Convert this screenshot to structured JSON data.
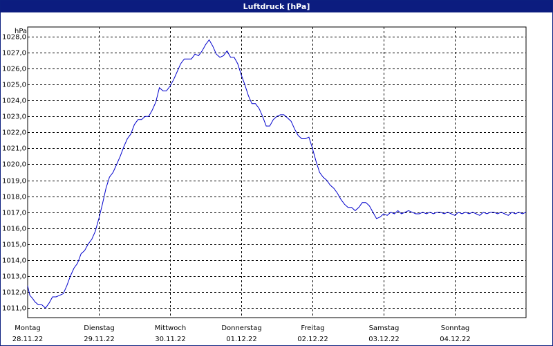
{
  "title": "Luftdruck [hPa]",
  "chart_data": {
    "type": "line",
    "title": "Luftdruck [hPa]",
    "ylabel": "hPa",
    "xlabel": "",
    "ylim": [
      1010.4,
      1028.6
    ],
    "xlim": [
      0,
      7
    ],
    "grid": true,
    "line_color": "#0000cc",
    "y_ticks": [
      "1011,0",
      "1012,0",
      "1013,0",
      "1014,0",
      "1015,0",
      "1016,0",
      "1017,0",
      "1018,0",
      "1019,0",
      "1020,0",
      "1021,0",
      "1022,0",
      "1023,0",
      "1024,0",
      "1025,0",
      "1026,0",
      "1027,0",
      "1028,0"
    ],
    "y_tick_values": [
      1011,
      1012,
      1013,
      1014,
      1015,
      1016,
      1017,
      1018,
      1019,
      1020,
      1021,
      1022,
      1023,
      1024,
      1025,
      1026,
      1027,
      1028
    ],
    "days": [
      {
        "name": "Montag",
        "date": "28.11.22"
      },
      {
        "name": "Dienstag",
        "date": "29.11.22"
      },
      {
        "name": "Mittwoch",
        "date": "30.11.22"
      },
      {
        "name": "Donnerstag",
        "date": "01.12.22"
      },
      {
        "name": "Freitag",
        "date": "02.12.22"
      },
      {
        "name": "Samstag",
        "date": "03.12.22"
      },
      {
        "name": "Sonntag",
        "date": "04.12.22"
      }
    ],
    "series": [
      {
        "x": [
          0,
          0.03,
          0.07,
          0.1,
          0.15,
          0.2,
          0.25,
          0.3,
          0.35,
          0.4,
          0.45,
          0.5,
          0.55,
          0.6,
          0.65,
          0.7,
          0.75,
          0.8,
          0.85,
          0.9,
          0.95,
          1.0,
          1.05,
          1.1,
          1.15,
          1.2,
          1.25,
          1.3,
          1.35,
          1.4,
          1.45,
          1.5,
          1.55,
          1.6,
          1.65,
          1.7,
          1.75,
          1.8,
          1.85,
          1.9,
          1.95,
          2.0,
          2.05,
          2.1,
          2.15,
          2.2,
          2.25,
          2.3,
          2.35,
          2.4,
          2.45,
          2.5,
          2.55,
          2.6,
          2.65,
          2.7,
          2.75,
          2.8,
          2.85,
          2.9,
          2.95,
          3.0,
          3.05,
          3.1,
          3.15,
          3.2,
          3.25,
          3.3,
          3.35,
          3.4,
          3.45,
          3.5,
          3.55,
          3.6,
          3.65,
          3.7,
          3.75,
          3.8,
          3.85,
          3.9,
          3.95,
          4.0,
          4.05,
          4.1,
          4.15,
          4.2,
          4.25,
          4.3,
          4.35,
          4.4,
          4.45,
          4.5,
          4.55,
          4.6,
          4.65,
          4.7,
          4.75,
          4.8,
          4.85,
          4.9,
          4.95,
          5.0,
          5.05,
          5.1,
          5.15,
          5.2,
          5.25,
          5.3,
          5.35,
          5.4,
          5.45,
          5.5,
          5.55,
          5.6,
          5.65,
          5.7,
          5.75,
          5.8,
          5.85,
          5.9,
          5.95,
          6.0,
          6.05,
          6.1,
          6.15,
          6.2,
          6.25,
          6.3,
          6.35,
          6.4,
          6.45,
          6.5,
          6.55,
          6.6,
          6.65,
          6.7,
          6.75,
          6.8,
          6.85,
          6.9,
          6.95,
          7.0
        ],
        "values": [
          1012.4,
          1011.8,
          1011.6,
          1011.4,
          1011.2,
          1011.2,
          1011.0,
          1011.3,
          1011.7,
          1011.7,
          1011.8,
          1011.9,
          1012.4,
          1013.0,
          1013.5,
          1013.8,
          1014.4,
          1014.6,
          1015.0,
          1015.3,
          1015.8,
          1016.6,
          1017.5,
          1018.5,
          1019.2,
          1019.5,
          1020.0,
          1020.5,
          1021.1,
          1021.6,
          1021.9,
          1022.5,
          1022.8,
          1022.8,
          1023.0,
          1023.0,
          1023.4,
          1023.9,
          1024.8,
          1024.6,
          1024.6,
          1024.9,
          1025.3,
          1025.8,
          1026.3,
          1026.6,
          1026.6,
          1026.6,
          1026.9,
          1026.8,
          1027.1,
          1027.5,
          1027.8,
          1027.4,
          1026.9,
          1026.7,
          1026.8,
          1027.1,
          1026.7,
          1026.7,
          1026.3,
          1025.6,
          1025.0,
          1024.3,
          1023.8,
          1023.8,
          1023.5,
          1023.0,
          1022.4,
          1022.4,
          1022.8,
          1023.0,
          1023.1,
          1023.1,
          1022.9,
          1022.7,
          1022.2,
          1021.8,
          1021.6,
          1021.6,
          1021.7,
          1021.0,
          1020.2,
          1019.5,
          1019.2,
          1019.0,
          1018.7,
          1018.5,
          1018.2,
          1017.8,
          1017.5,
          1017.3,
          1017.3,
          1017.1,
          1017.3,
          1017.6,
          1017.6,
          1017.4,
          1017.0,
          1016.6,
          1016.7,
          1016.9,
          1016.8,
          1017.0,
          1016.9,
          1017.1,
          1016.9,
          1017.0,
          1017.1,
          1017.0,
          1016.9,
          1016.9,
          1017.0,
          1016.9,
          1017.0,
          1016.9,
          1017.0,
          1017.0,
          1016.9,
          1017.0,
          1016.9,
          1016.8,
          1017.0,
          1016.9,
          1017.0,
          1016.9,
          1017.0,
          1016.9,
          1016.8,
          1017.0,
          1016.9,
          1017.0,
          1017.0,
          1016.9,
          1017.0,
          1016.9,
          1016.8,
          1017.0,
          1016.9,
          1017.0,
          1016.9,
          1017.0
        ]
      }
    ]
  }
}
